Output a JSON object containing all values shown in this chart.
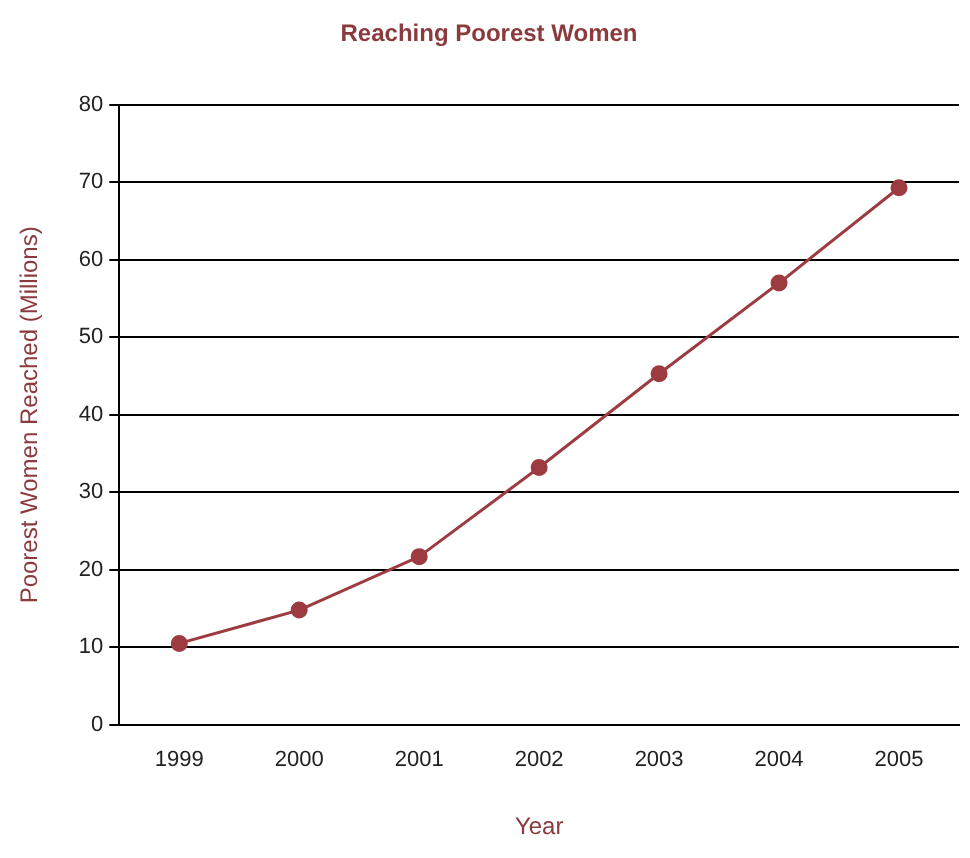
{
  "chart_data": {
    "type": "line",
    "title": "Reaching Poorest Women",
    "xlabel": "Year",
    "ylabel": "Poorest Women Reached (Millions)",
    "categories": [
      "1999",
      "2000",
      "2001",
      "2002",
      "2003",
      "2004",
      "2005"
    ],
    "series": [
      {
        "color": "#9c3b40",
        "values": [
          10.5,
          14.8,
          21.7,
          33.2,
          45.3,
          57.0,
          69.3
        ]
      }
    ],
    "ylim": [
      0,
      80
    ],
    "yticks": [
      0,
      10,
      20,
      30,
      40,
      50,
      60,
      70,
      80
    ],
    "grid": "y",
    "legend": false,
    "marker": "circle",
    "line_style": "solid"
  }
}
